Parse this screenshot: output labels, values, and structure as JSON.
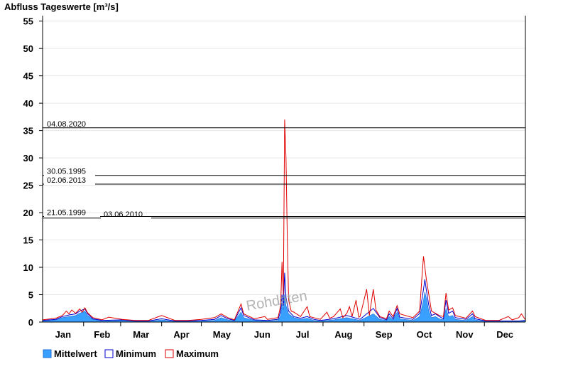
{
  "chart_data": {
    "type": "area",
    "title": "Abfluss Tageswerte [m³/s]",
    "ylim": [
      0,
      56
    ],
    "yticks": [
      0,
      5,
      10,
      15,
      20,
      25,
      30,
      35,
      40,
      45,
      50,
      55
    ],
    "xlim": [
      0,
      365
    ],
    "months": [
      "Jan",
      "Feb",
      "Mar",
      "Apr",
      "May",
      "Jun",
      "Jul",
      "Aug",
      "Sep",
      "Oct",
      "Nov",
      "Dec"
    ],
    "grid": true,
    "reference_lines": [
      {
        "label": "04.08.2020",
        "value": 35.5
      },
      {
        "label": "30.05.1995",
        "value": 26.8
      },
      {
        "label": "02.06.2013",
        "value": 25.2
      },
      {
        "label": "21.05.1999",
        "value": 19.3
      },
      {
        "label": "03.06.2010",
        "value": 19.0
      }
    ],
    "series": [
      {
        "name": "Mittelwert",
        "color": "#3aa0ff",
        "points": [
          [
            0,
            0.2
          ],
          [
            10,
            0.4
          ],
          [
            15,
            0.8
          ],
          [
            20,
            1.0
          ],
          [
            25,
            1.2
          ],
          [
            28,
            1.6
          ],
          [
            32,
            2.0
          ],
          [
            34,
            1.2
          ],
          [
            38,
            0.5
          ],
          [
            45,
            0.2
          ],
          [
            60,
            0.3
          ],
          [
            70,
            0.1
          ],
          [
            80,
            0.1
          ],
          [
            90,
            0.4
          ],
          [
            100,
            0.1
          ],
          [
            110,
            0.1
          ],
          [
            120,
            0.2
          ],
          [
            130,
            0.3
          ],
          [
            135,
            0.8
          ],
          [
            140,
            0.4
          ],
          [
            145,
            0.2
          ],
          [
            150,
            1.8
          ],
          [
            152,
            0.8
          ],
          [
            160,
            0.3
          ],
          [
            170,
            0.2
          ],
          [
            178,
            0.3
          ],
          [
            180,
            1.2
          ],
          [
            181,
            3.5
          ],
          [
            182,
            2.2
          ],
          [
            183,
            5.0
          ],
          [
            184,
            3.0
          ],
          [
            186,
            1.5
          ],
          [
            190,
            0.8
          ],
          [
            195,
            0.5
          ],
          [
            200,
            0.7
          ],
          [
            205,
            0.3
          ],
          [
            210,
            0.2
          ],
          [
            220,
            0.4
          ],
          [
            230,
            0.8
          ],
          [
            240,
            0.3
          ],
          [
            250,
            1.5
          ],
          [
            255,
            0.5
          ],
          [
            260,
            0.3
          ],
          [
            262,
            1.0
          ],
          [
            265,
            0.4
          ],
          [
            268,
            1.8
          ],
          [
            270,
            0.6
          ],
          [
            280,
            0.3
          ],
          [
            285,
            1.0
          ],
          [
            287,
            3.0
          ],
          [
            288,
            4.0
          ],
          [
            289,
            5.5
          ],
          [
            290,
            4.5
          ],
          [
            292,
            2.0
          ],
          [
            294,
            0.8
          ],
          [
            297,
            1.0
          ],
          [
            300,
            0.6
          ],
          [
            303,
            0.4
          ],
          [
            305,
            2.5
          ],
          [
            307,
            1.0
          ],
          [
            310,
            1.2
          ],
          [
            312,
            0.5
          ],
          [
            320,
            0.3
          ],
          [
            325,
            1.0
          ],
          [
            327,
            0.4
          ],
          [
            335,
            0.1
          ],
          [
            345,
            0.1
          ],
          [
            360,
            0.1
          ],
          [
            365,
            0.2
          ]
        ]
      },
      {
        "name": "Minimum",
        "color": "#0000d0",
        "points": [
          [
            0,
            0.3
          ],
          [
            10,
            0.5
          ],
          [
            15,
            1.0
          ],
          [
            20,
            1.3
          ],
          [
            25,
            1.5
          ],
          [
            28,
            2.0
          ],
          [
            32,
            2.4
          ],
          [
            34,
            1.5
          ],
          [
            38,
            0.6
          ],
          [
            45,
            0.3
          ],
          [
            60,
            0.4
          ],
          [
            70,
            0.2
          ],
          [
            80,
            0.2
          ],
          [
            90,
            0.6
          ],
          [
            100,
            0.2
          ],
          [
            110,
            0.2
          ],
          [
            120,
            0.3
          ],
          [
            130,
            0.5
          ],
          [
            135,
            1.2
          ],
          [
            140,
            0.6
          ],
          [
            145,
            0.3
          ],
          [
            150,
            2.6
          ],
          [
            152,
            1.2
          ],
          [
            160,
            0.4
          ],
          [
            170,
            0.3
          ],
          [
            178,
            0.5
          ],
          [
            180,
            2.0
          ],
          [
            181,
            5.0
          ],
          [
            182,
            3.0
          ],
          [
            183,
            9.0
          ],
          [
            184,
            4.5
          ],
          [
            186,
            2.0
          ],
          [
            190,
            1.0
          ],
          [
            195,
            0.7
          ],
          [
            200,
            1.0
          ],
          [
            205,
            0.5
          ],
          [
            210,
            0.3
          ],
          [
            220,
            0.6
          ],
          [
            230,
            1.2
          ],
          [
            240,
            0.5
          ],
          [
            250,
            2.5
          ],
          [
            255,
            0.8
          ],
          [
            260,
            0.4
          ],
          [
            262,
            1.5
          ],
          [
            265,
            0.6
          ],
          [
            268,
            2.5
          ],
          [
            270,
            0.9
          ],
          [
            280,
            0.5
          ],
          [
            285,
            1.6
          ],
          [
            287,
            4.5
          ],
          [
            288,
            6.0
          ],
          [
            289,
            7.8
          ],
          [
            290,
            6.0
          ],
          [
            292,
            3.0
          ],
          [
            294,
            1.2
          ],
          [
            297,
            1.5
          ],
          [
            300,
            1.0
          ],
          [
            303,
            0.6
          ],
          [
            305,
            4.0
          ],
          [
            307,
            1.6
          ],
          [
            310,
            2.0
          ],
          [
            312,
            0.8
          ],
          [
            320,
            0.5
          ],
          [
            325,
            1.5
          ],
          [
            327,
            0.6
          ],
          [
            335,
            0.2
          ],
          [
            345,
            0.2
          ],
          [
            360,
            0.2
          ],
          [
            365,
            0.3
          ]
        ]
      },
      {
        "name": "Maximum",
        "color": "#e00000",
        "points": [
          [
            0,
            0.4
          ],
          [
            10,
            0.7
          ],
          [
            15,
            1.2
          ],
          [
            18,
            2.0
          ],
          [
            20,
            1.5
          ],
          [
            22,
            2.2
          ],
          [
            25,
            1.6
          ],
          [
            28,
            2.4
          ],
          [
            30,
            1.8
          ],
          [
            32,
            2.6
          ],
          [
            34,
            1.7
          ],
          [
            38,
            0.8
          ],
          [
            45,
            0.4
          ],
          [
            50,
            0.9
          ],
          [
            60,
            0.5
          ],
          [
            70,
            0.3
          ],
          [
            80,
            0.3
          ],
          [
            90,
            1.2
          ],
          [
            100,
            0.3
          ],
          [
            110,
            0.3
          ],
          [
            120,
            0.5
          ],
          [
            130,
            0.8
          ],
          [
            135,
            1.5
          ],
          [
            140,
            0.8
          ],
          [
            145,
            0.4
          ],
          [
            150,
            3.3
          ],
          [
            152,
            1.5
          ],
          [
            160,
            0.6
          ],
          [
            168,
            1.0
          ],
          [
            170,
            0.5
          ],
          [
            178,
            0.8
          ],
          [
            180,
            3.0
          ],
          [
            181,
            11.0
          ],
          [
            182,
            5.0
          ],
          [
            183,
            37.0
          ],
          [
            184,
            30.0
          ],
          [
            185,
            15.0
          ],
          [
            186,
            4.0
          ],
          [
            188,
            2.0
          ],
          [
            190,
            1.8
          ],
          [
            195,
            1.0
          ],
          [
            200,
            2.8
          ],
          [
            202,
            1.0
          ],
          [
            205,
            0.8
          ],
          [
            210,
            0.5
          ],
          [
            215,
            1.8
          ],
          [
            217,
            0.7
          ],
          [
            220,
            1.0
          ],
          [
            225,
            2.4
          ],
          [
            227,
            0.8
          ],
          [
            230,
            1.6
          ],
          [
            232,
            2.8
          ],
          [
            234,
            1.0
          ],
          [
            237,
            4.0
          ],
          [
            239,
            0.9
          ],
          [
            240,
            1.0
          ],
          [
            245,
            6.0
          ],
          [
            247,
            1.2
          ],
          [
            250,
            6.0
          ],
          [
            252,
            2.2
          ],
          [
            255,
            1.0
          ],
          [
            260,
            0.6
          ],
          [
            262,
            2.0
          ],
          [
            265,
            1.0
          ],
          [
            268,
            3.0
          ],
          [
            270,
            1.5
          ],
          [
            280,
            0.8
          ],
          [
            285,
            2.0
          ],
          [
            287,
            9.0
          ],
          [
            288,
            12.0
          ],
          [
            289,
            10.0
          ],
          [
            290,
            8.0
          ],
          [
            292,
            5.0
          ],
          [
            294,
            2.0
          ],
          [
            297,
            1.6
          ],
          [
            300,
            1.2
          ],
          [
            303,
            1.0
          ],
          [
            305,
            5.3
          ],
          [
            307,
            2.2
          ],
          [
            310,
            2.6
          ],
          [
            312,
            1.2
          ],
          [
            320,
            0.7
          ],
          [
            325,
            2.0
          ],
          [
            327,
            1.0
          ],
          [
            335,
            0.3
          ],
          [
            345,
            0.3
          ],
          [
            352,
            1.0
          ],
          [
            355,
            0.4
          ],
          [
            360,
            0.8
          ],
          [
            362,
            1.5
          ],
          [
            365,
            0.4
          ]
        ]
      }
    ],
    "watermark": "Rohdaten"
  }
}
